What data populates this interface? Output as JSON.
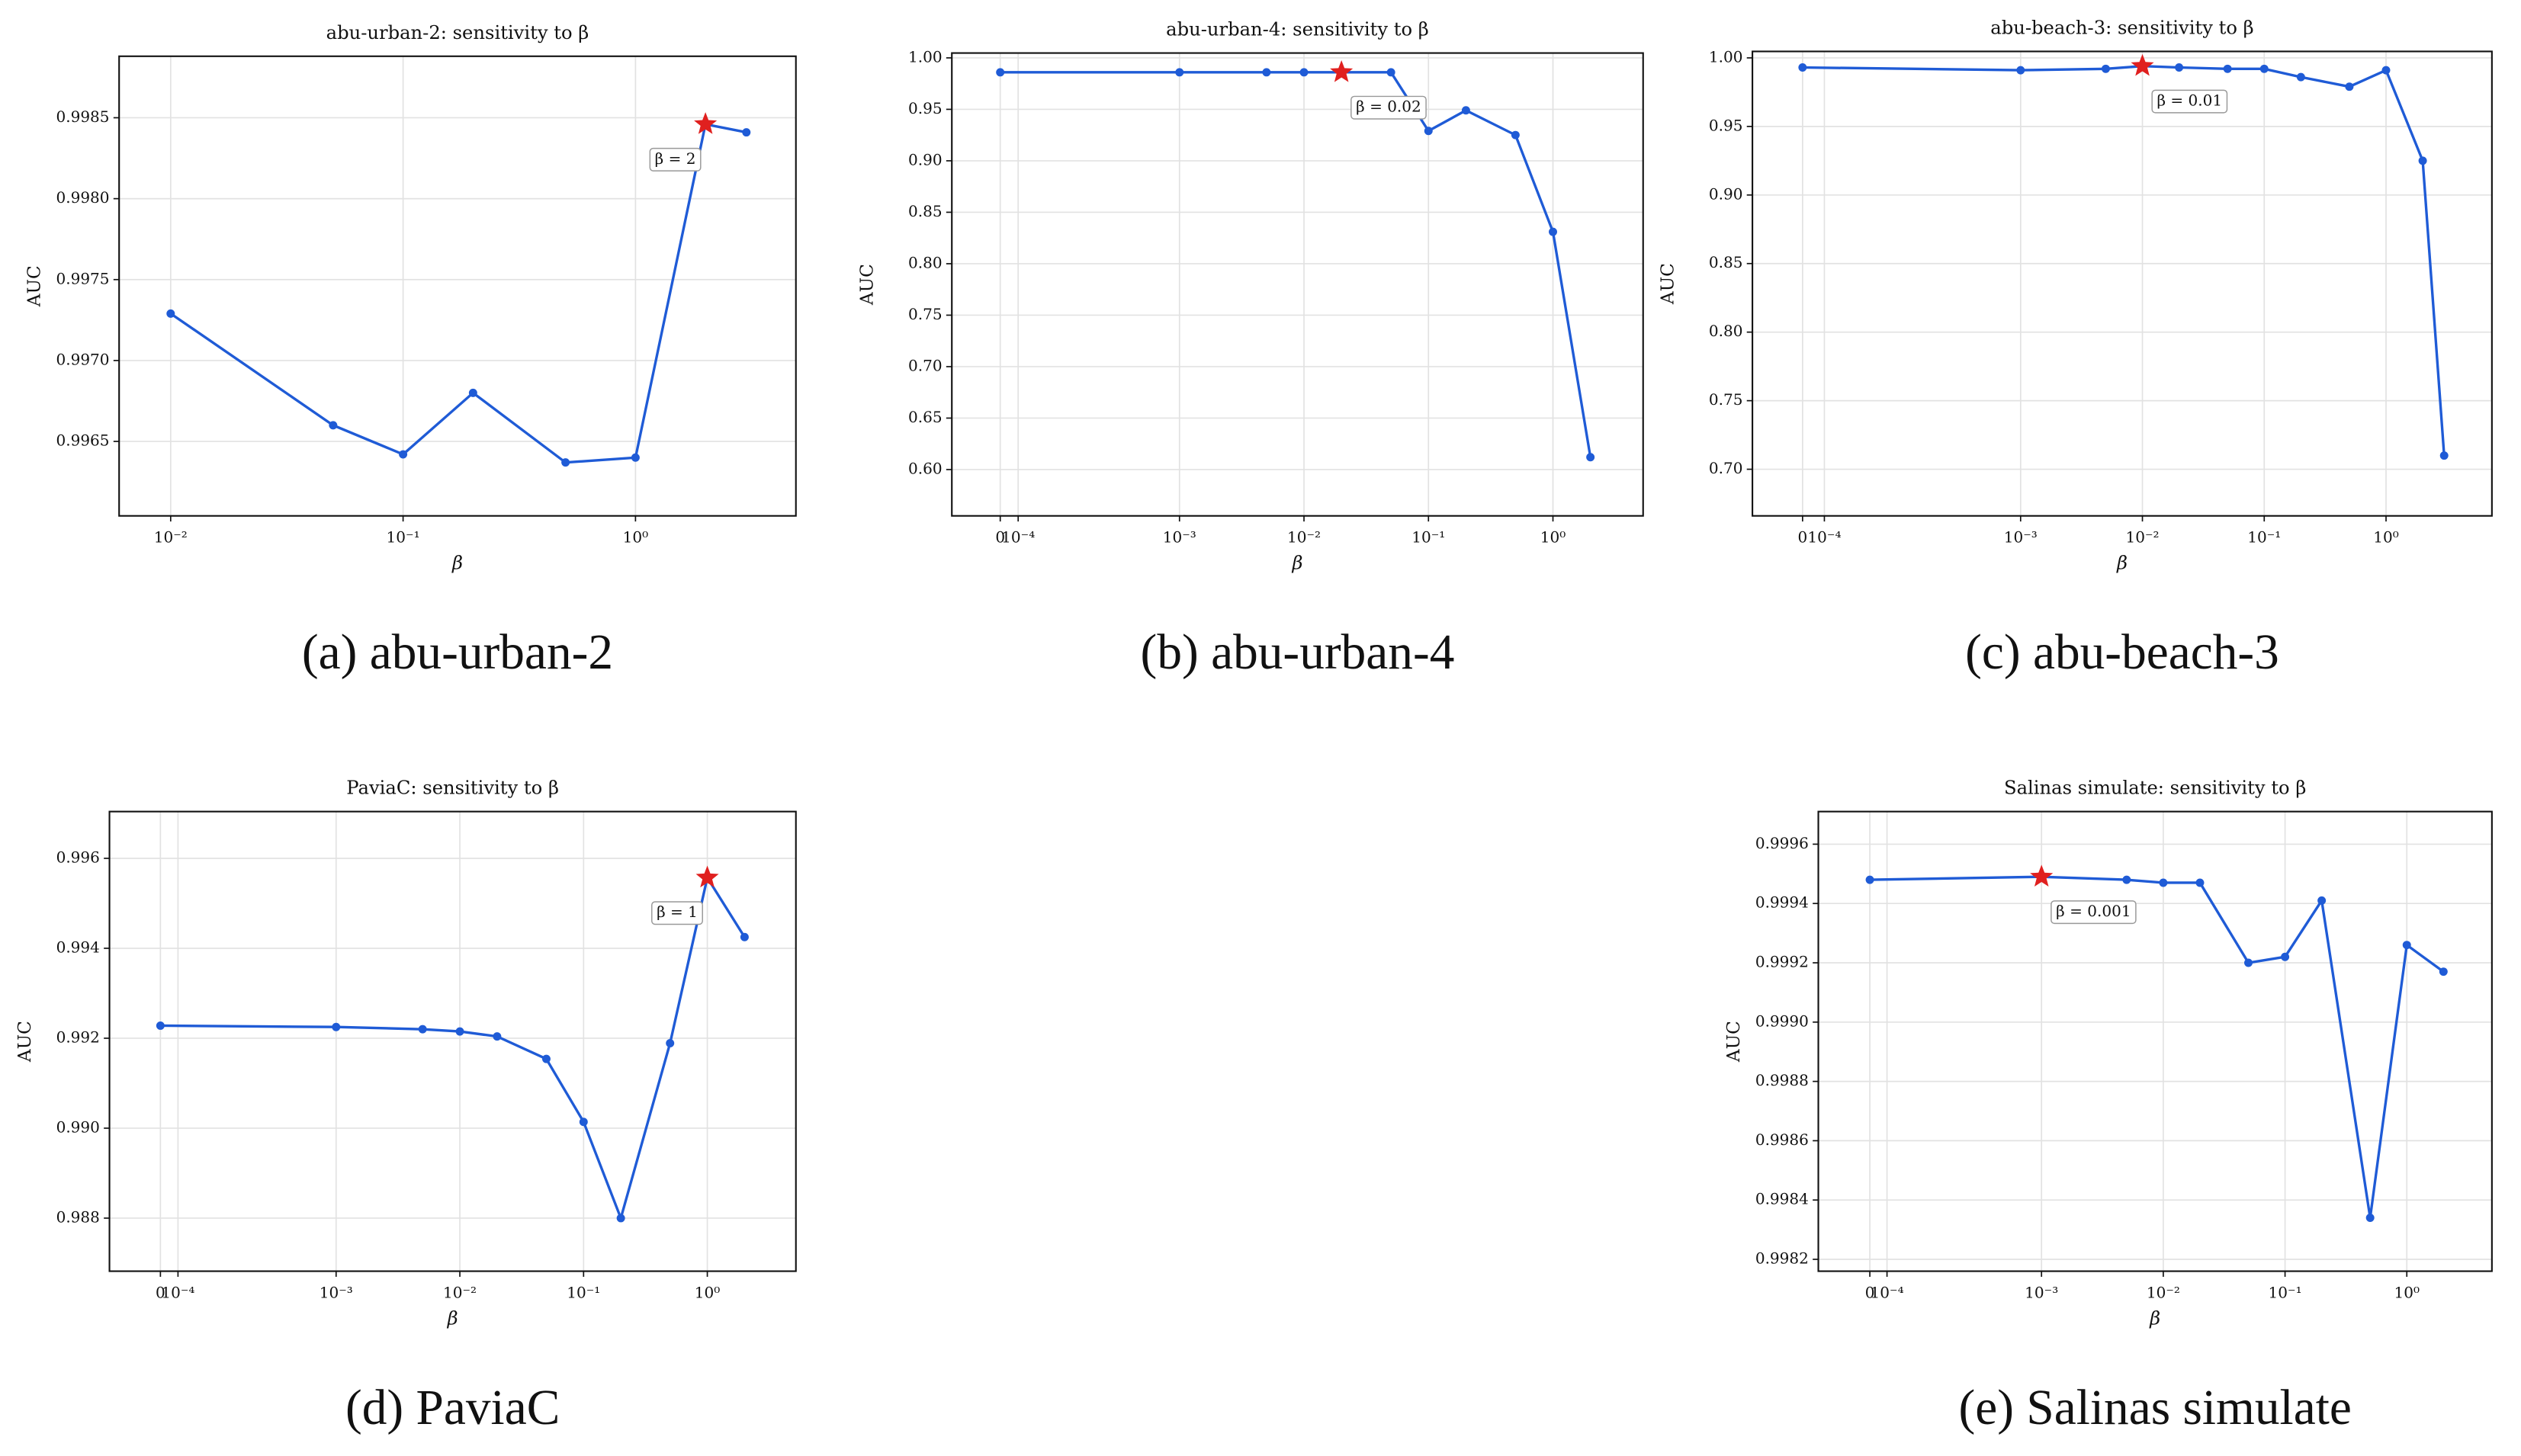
{
  "chart_data": [
    {
      "type": "line",
      "title": "abu-urban-2: sensitivity to β",
      "caption": "(a) abu-urban-2",
      "xlabel": "β",
      "ylabel": "AUC",
      "xscale": "log",
      "x": [
        0.01,
        0.05,
        0.1,
        0.2,
        0.5,
        1,
        2,
        3
      ],
      "values": [
        0.99729,
        0.9966,
        0.99642,
        0.9968,
        0.99637,
        0.9964,
        0.99846,
        0.99841
      ],
      "color": "#1f5bd6",
      "star_index": 6,
      "star_color": "#e0201f",
      "annotation": "β = 2",
      "xlim": [
        0.006,
        4.9
      ],
      "ylim": [
        0.99604,
        0.99888
      ],
      "xticks": [
        {
          "value": 0.01,
          "label": "10⁻²"
        },
        {
          "value": 0.1,
          "label": "10⁻¹"
        },
        {
          "value": 1,
          "label": "10⁰"
        }
      ],
      "yticks": [
        0.9965,
        {
          "value": 0.997,
          "label": "0.9970"
        },
        0.9975,
        {
          "value": 0.998,
          "label": "0.9980"
        },
        0.9985
      ],
      "grid": true
    },
    {
      "type": "line",
      "title": "abu-urban-4: sensitivity to β",
      "caption": "(b) abu-urban-4",
      "xlabel": "β",
      "ylabel": "AUC",
      "xscale": "symlog",
      "x": [
        0,
        0.001,
        0.005,
        0.01,
        0.02,
        0.05,
        0.1,
        0.2,
        0.5,
        1,
        2
      ],
      "values": [
        0.986,
        0.986,
        0.986,
        0.986,
        0.986,
        0.986,
        0.929,
        0.949,
        0.925,
        0.831,
        0.612
      ],
      "color": "#1f5bd6",
      "star_index": 4,
      "star_color": "#e0201f",
      "annotation": "β = 0.02",
      "xlim": [
        -0.00027,
        5.3
      ],
      "ylim": [
        0.555,
        1.0047
      ],
      "xticks": [
        0,
        {
          "value": 0.0001,
          "label": "10⁻⁴"
        },
        {
          "value": 0.001,
          "label": "10⁻³"
        },
        {
          "value": 0.01,
          "label": "10⁻²"
        },
        {
          "value": 0.1,
          "label": "10⁻¹"
        },
        {
          "value": 1,
          "label": "10⁰"
        }
      ],
      "yticks": [
        {
          "value": 0.6,
          "label": "0.60"
        },
        0.65,
        {
          "value": 0.7,
          "label": "0.70"
        },
        0.75,
        {
          "value": 0.8,
          "label": "0.80"
        },
        0.85,
        {
          "value": 0.9,
          "label": "0.90"
        },
        0.95,
        {
          "value": 1,
          "label": "1.00"
        }
      ],
      "grid": true
    },
    {
      "type": "line",
      "title": "abu-beach-3: sensitivity to β",
      "caption": "(c) abu-beach-3",
      "xlabel": "β",
      "ylabel": "AUC",
      "xscale": "symlog",
      "x": [
        0,
        0.001,
        0.005,
        0.01,
        0.02,
        0.05,
        0.1,
        0.2,
        0.5,
        1,
        2,
        3
      ],
      "values": [
        0.993,
        0.991,
        0.992,
        0.994,
        0.993,
        0.992,
        0.992,
        0.986,
        0.979,
        0.991,
        0.925,
        0.71
      ],
      "color": "#1f5bd6",
      "star_index": 3,
      "star_color": "#e0201f",
      "annotation": "β = 0.01",
      "xlim": [
        -0.00023,
        7.4
      ],
      "ylim": [
        0.666,
        1.0047
      ],
      "xticks": [
        0,
        {
          "value": 0.0001,
          "label": "10⁻⁴"
        },
        {
          "value": 0.001,
          "label": "10⁻³"
        },
        {
          "value": 0.01,
          "label": "10⁻²"
        },
        {
          "value": 0.1,
          "label": "10⁻¹"
        },
        {
          "value": 1,
          "label": "10⁰"
        }
      ],
      "yticks": [
        {
          "value": 0.7,
          "label": "0.70"
        },
        0.75,
        {
          "value": 0.8,
          "label": "0.80"
        },
        0.85,
        {
          "value": 0.9,
          "label": "0.90"
        },
        0.95,
        {
          "value": 1,
          "label": "1.00"
        }
      ],
      "grid": true
    },
    {
      "type": "line",
      "title": "PaviaC: sensitivity to β",
      "caption": "(d) PaviaC",
      "xlabel": "β",
      "ylabel": "AUC",
      "xscale": "symlog",
      "x": [
        0,
        0.001,
        0.005,
        0.01,
        0.02,
        0.05,
        0.1,
        0.2,
        0.5,
        1,
        2
      ],
      "values": [
        0.99228,
        0.99225,
        0.9922,
        0.99215,
        0.99204,
        0.99154,
        0.99014,
        0.988,
        0.99189,
        0.99557,
        0.99425
      ],
      "color": "#1f5bd6",
      "star_index": 9,
      "star_color": "#e0201f",
      "annotation": "β = 1",
      "xlim": [
        -0.00029,
        5.2
      ],
      "ylim": [
        0.98682,
        0.99704
      ],
      "xticks": [
        0,
        {
          "value": 0.0001,
          "label": "10⁻⁴"
        },
        {
          "value": 0.001,
          "label": "10⁻³"
        },
        {
          "value": 0.01,
          "label": "10⁻²"
        },
        {
          "value": 0.1,
          "label": "10⁻¹"
        },
        {
          "value": 1,
          "label": "10⁰"
        }
      ],
      "yticks": [
        0.988,
        {
          "value": 0.99,
          "label": "0.990"
        },
        0.992,
        0.994,
        0.996
      ],
      "grid": true
    },
    {
      "type": "line",
      "title": "Salinas simulate: sensitivity to β",
      "caption": "(e) Salinas simulate",
      "xlabel": "β",
      "ylabel": "AUC",
      "xscale": "symlog",
      "x": [
        0,
        0.001,
        0.005,
        0.01,
        0.02,
        0.05,
        0.1,
        0.2,
        0.5,
        1,
        2
      ],
      "values": [
        0.99948,
        0.99949,
        0.99948,
        0.99947,
        0.99947,
        0.9992,
        0.99922,
        0.99941,
        0.99834,
        0.99926,
        0.99917
      ],
      "color": "#1f5bd6",
      "star_index": 1,
      "star_color": "#e0201f",
      "annotation": "β = 0.001",
      "xlim": [
        -0.0003,
        5.0
      ],
      "ylim": [
        0.99816,
        0.99971
      ],
      "xticks": [
        0,
        {
          "value": 0.0001,
          "label": "10⁻⁴"
        },
        {
          "value": 0.001,
          "label": "10⁻³"
        },
        {
          "value": 0.01,
          "label": "10⁻²"
        },
        {
          "value": 0.1,
          "label": "10⁻¹"
        },
        {
          "value": 1,
          "label": "10⁰"
        }
      ],
      "yticks": [
        0.9982,
        0.9984,
        0.9986,
        0.9988,
        {
          "value": 0.999,
          "label": "0.9990"
        },
        0.9992,
        0.9994,
        0.9996
      ],
      "grid": true
    }
  ]
}
